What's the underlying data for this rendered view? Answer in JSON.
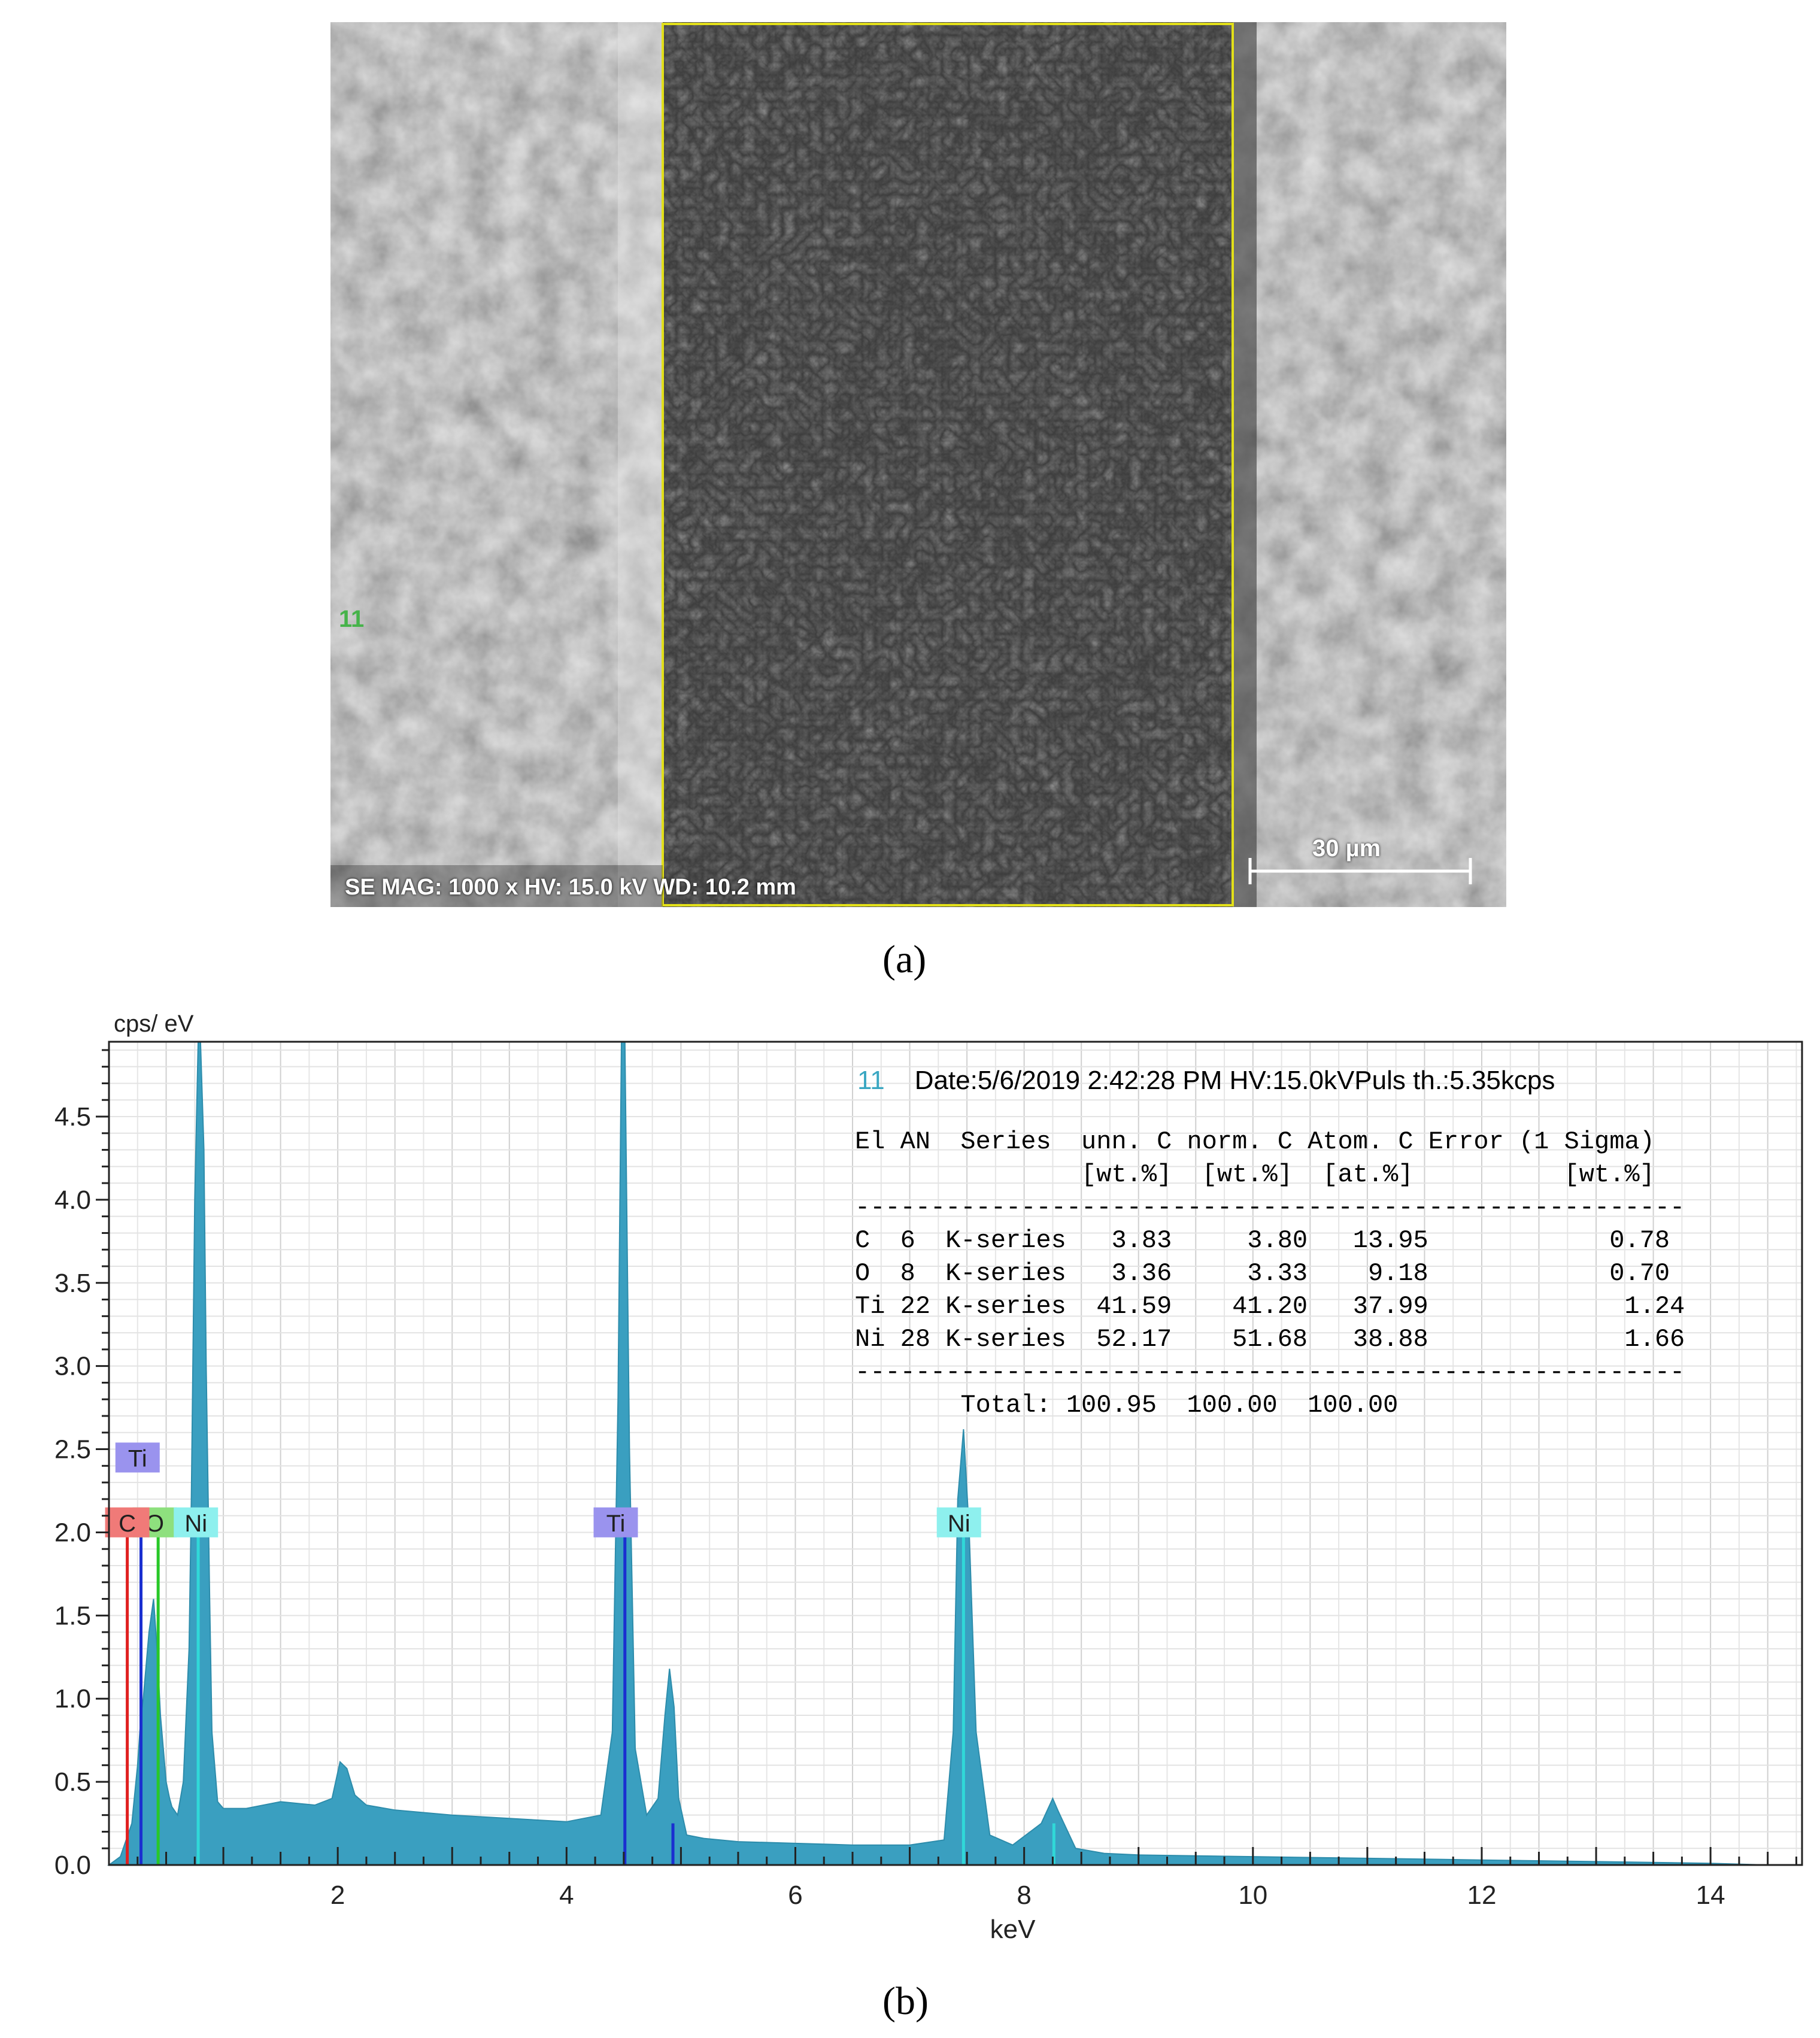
{
  "panels": {
    "a": "(a)",
    "b": "(b)"
  },
  "sem": {
    "info": "SE MAG: 1000 x HV: 15.0 kV WD: 10.2 mm",
    "marker": "11",
    "scalebar": "30 µm"
  },
  "chart_data": {
    "type": "area",
    "ylabel": "cps/ eV",
    "xlabel": "keV",
    "xlim": [
      0,
      14.8
    ],
    "ylim": [
      0,
      4.95
    ],
    "xticks": [
      2,
      4,
      6,
      8,
      10,
      12,
      14
    ],
    "yticks": [
      0.0,
      0.5,
      1.0,
      1.5,
      2.0,
      2.5,
      3.0,
      3.5,
      4.0,
      4.5
    ],
    "grid": true,
    "color": "#3a9fc0",
    "spectrum": {
      "x": [
        0.0,
        0.1,
        0.2,
        0.25,
        0.28,
        0.3,
        0.35,
        0.39,
        0.42,
        0.45,
        0.5,
        0.53,
        0.55,
        0.6,
        0.65,
        0.7,
        0.72,
        0.75,
        0.78,
        0.8,
        0.83,
        0.85,
        0.88,
        0.9,
        0.95,
        1.0,
        1.2,
        1.5,
        1.8,
        1.95,
        2.02,
        2.08,
        2.15,
        2.25,
        2.5,
        3.0,
        3.5,
        4.0,
        4.3,
        4.4,
        4.45,
        4.48,
        4.51,
        4.55,
        4.6,
        4.7,
        4.8,
        4.86,
        4.9,
        4.94,
        4.98,
        5.05,
        5.2,
        5.5,
        6.0,
        6.5,
        7.0,
        7.3,
        7.38,
        7.42,
        7.47,
        7.52,
        7.58,
        7.7,
        7.9,
        8.15,
        8.25,
        8.3,
        8.45,
        8.7,
        9.0,
        10.0,
        11.0,
        12.0,
        13.0,
        14.0,
        14.5,
        14.8
      ],
      "y": [
        0.0,
        0.05,
        0.25,
        0.6,
        0.9,
        1.0,
        1.4,
        1.6,
        1.3,
        0.9,
        0.5,
        0.4,
        0.35,
        0.3,
        0.5,
        1.3,
        2.2,
        4.0,
        5.1,
        5.1,
        4.3,
        3.0,
        1.6,
        0.8,
        0.38,
        0.34,
        0.34,
        0.38,
        0.36,
        0.4,
        0.62,
        0.58,
        0.42,
        0.36,
        0.33,
        0.3,
        0.28,
        0.26,
        0.3,
        0.8,
        2.8,
        5.1,
        5.1,
        2.5,
        0.7,
        0.3,
        0.4,
        0.9,
        1.18,
        0.95,
        0.4,
        0.18,
        0.16,
        0.14,
        0.13,
        0.12,
        0.12,
        0.15,
        0.8,
        2.2,
        2.62,
        2.0,
        0.8,
        0.18,
        0.12,
        0.25,
        0.4,
        0.32,
        0.1,
        0.07,
        0.06,
        0.05,
        0.04,
        0.03,
        0.02,
        0.01,
        0.0,
        0.0
      ]
    },
    "element_labels": [
      {
        "text": "Ti",
        "x": 0.25,
        "y": 2.45,
        "color": "#9a93ee"
      },
      {
        "text": "O",
        "x": 0.4,
        "y": 2.06,
        "color": "#8ee07e"
      },
      {
        "text": "C",
        "x": 0.16,
        "y": 2.06,
        "color": "#f07a78"
      },
      {
        "text": "Ni",
        "x": 0.76,
        "y": 2.06,
        "color": "#8ef0ee"
      },
      {
        "text": "Ti",
        "x": 4.43,
        "y": 2.06,
        "color": "#9a93ee"
      },
      {
        "text": "Ni",
        "x": 7.43,
        "y": 2.06,
        "color": "#8ef0ee"
      }
    ],
    "element_lines": [
      {
        "x": 0.16,
        "y": 2.06,
        "color": "#e02020"
      },
      {
        "x": 0.28,
        "y": 2.06,
        "color": "#1a2fd0"
      },
      {
        "x": 0.43,
        "y": 2.06,
        "color": "#28c828"
      },
      {
        "x": 0.78,
        "y": 2.06,
        "color": "#30d8d8"
      },
      {
        "x": 4.51,
        "y": 2.06,
        "color": "#1a2fd0"
      },
      {
        "x": 4.93,
        "y": 0.25,
        "color": "#1a2fd0"
      },
      {
        "x": 7.47,
        "y": 2.06,
        "color": "#30d8d8"
      },
      {
        "x": 8.26,
        "y": 0.25,
        "color": "#30d8d8"
      }
    ],
    "annotation": {
      "marker": "11",
      "header": "Date:5/6/2019 2:42:28 PM HV:15.0kVPuls th.:5.35kcps",
      "table_lines": [
        "El AN  Series  unn. C norm. C Atom. C Error (1 Sigma)",
        "               [wt.%]  [wt.%]  [at.%]          [wt.%]",
        "-------------------------------------------------------",
        "C  6  K-series   3.83     3.80   13.95            0.78",
        "O  8  K-series   3.36     3.33    9.18            0.70",
        "Ti 22 K-series  41.59    41.20   37.99             1.24",
        "Ni 28 K-series  52.17    51.68   38.88             1.66",
        "-------------------------------------------------------",
        "       Total: 100.95  100.00  100.00"
      ]
    }
  }
}
